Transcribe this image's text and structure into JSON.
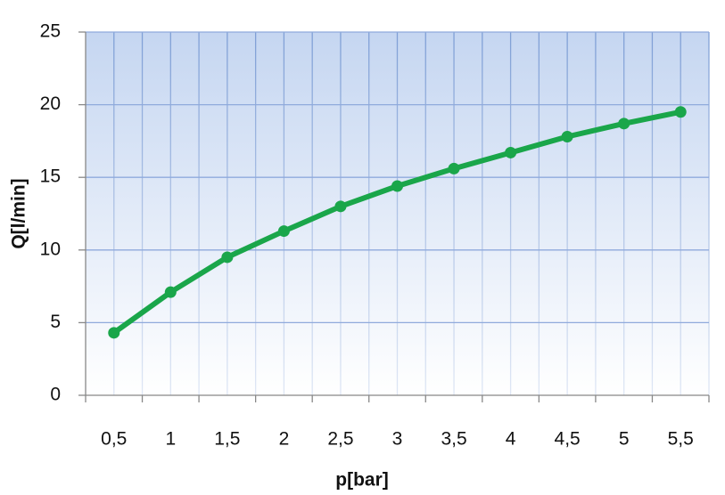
{
  "chart_data": {
    "type": "line",
    "x_label": "p[bar]",
    "y_label": "Q[l/min]",
    "categories": [
      "0,5",
      "1",
      "1,5",
      "2",
      "2,5",
      "3",
      "3,5",
      "4",
      "4,5",
      "5",
      "5,5"
    ],
    "series": [
      {
        "color": "#1aa64a",
        "values": [
          4.3,
          7.1,
          9.5,
          11.3,
          13.0,
          14.4,
          15.6,
          16.7,
          17.8,
          18.7,
          19.5
        ]
      }
    ],
    "ylim": [
      0,
      25
    ],
    "yticks": [
      0,
      5,
      10,
      15,
      20,
      25
    ],
    "grid": true
  }
}
